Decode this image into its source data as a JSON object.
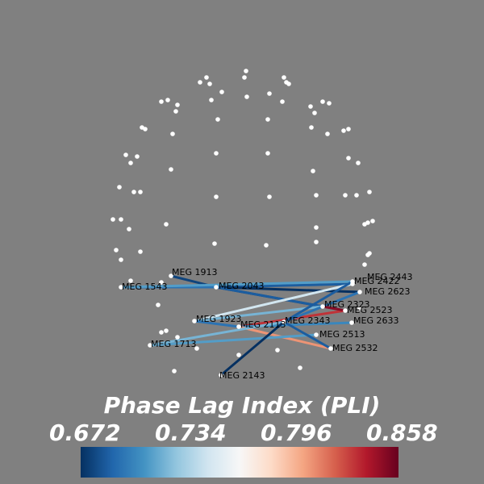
{
  "colors": {
    "background": "#808080",
    "node": "#ffffff",
    "text": "#ffffff",
    "colormap": [
      "#053061",
      "#2166ac",
      "#4393c3",
      "#92c5de",
      "#d1e5f0",
      "#f7f7f7",
      "#fddbc7",
      "#f4a582",
      "#d6604d",
      "#b2182b",
      "#67001f"
    ]
  },
  "chart_data": {
    "type": "connectivity_circle_sensor_plot",
    "colorbar": {
      "title": "Phase Lag Index (PLI)",
      "ticks": [
        "0.672",
        "0.734",
        "0.796",
        "0.858"
      ],
      "min": 0.672,
      "max": 0.89
    },
    "labels": [
      "MEG 1913",
      "MEG 1543",
      "MEG 2043",
      "MEG 2422",
      "MEG 2443",
      "MEG 2623",
      "MEG 2323",
      "MEG 2523",
      "MEG 1923",
      "MEG 2113",
      "MEG 2343",
      "MEG 2633",
      "MEG 2513",
      "MEG 1713",
      "MEG 2532",
      "MEG 2143"
    ],
    "connections": [
      {
        "from": "MEG 1913",
        "to": "MEG 2043",
        "pli": 0.68
      },
      {
        "from": "MEG 1543",
        "to": "MEG 2043",
        "pli": 0.7
      },
      {
        "from": "MEG 2043",
        "to": "MEG 2422",
        "pli": 0.69
      },
      {
        "from": "MEG 2043",
        "to": "MEG 2623",
        "pli": 0.67
      },
      {
        "from": "MEG 1543",
        "to": "MEG 2443",
        "pli": 0.72
      },
      {
        "from": "MEG 2043",
        "to": "MEG 2323",
        "pli": 0.68
      },
      {
        "from": "MEG 2043",
        "to": "MEG 2523",
        "pli": 0.69
      },
      {
        "from": "MEG 1923",
        "to": "MEG 2422",
        "pli": 0.76
      },
      {
        "from": "MEG 1923",
        "to": "MEG 2323",
        "pli": 0.73
      },
      {
        "from": "MEG 1923",
        "to": "MEG 2113",
        "pli": 0.7
      },
      {
        "from": "MEG 2113",
        "to": "MEG 2523",
        "pli": 0.86
      },
      {
        "from": "MEG 2113",
        "to": "MEG 2633",
        "pli": 0.71
      },
      {
        "from": "MEG 2113",
        "to": "MEG 2532",
        "pli": 0.83
      },
      {
        "from": "MEG 2343",
        "to": "MEG 2623",
        "pli": 0.7
      },
      {
        "from": "MEG 1713",
        "to": "MEG 2513",
        "pli": 0.72
      },
      {
        "from": "MEG 1713",
        "to": "MEG 2343",
        "pli": 0.73
      },
      {
        "from": "MEG 2143",
        "to": "MEG 2343",
        "pli": 0.67
      },
      {
        "from": "MEG 2343",
        "to": "MEG 2443",
        "pli": 0.69
      },
      {
        "from": "MEG 2343",
        "to": "MEG 2532",
        "pli": 0.69
      },
      {
        "from": "MEG 2323",
        "to": "MEG 2523",
        "pli": 0.88
      }
    ]
  }
}
